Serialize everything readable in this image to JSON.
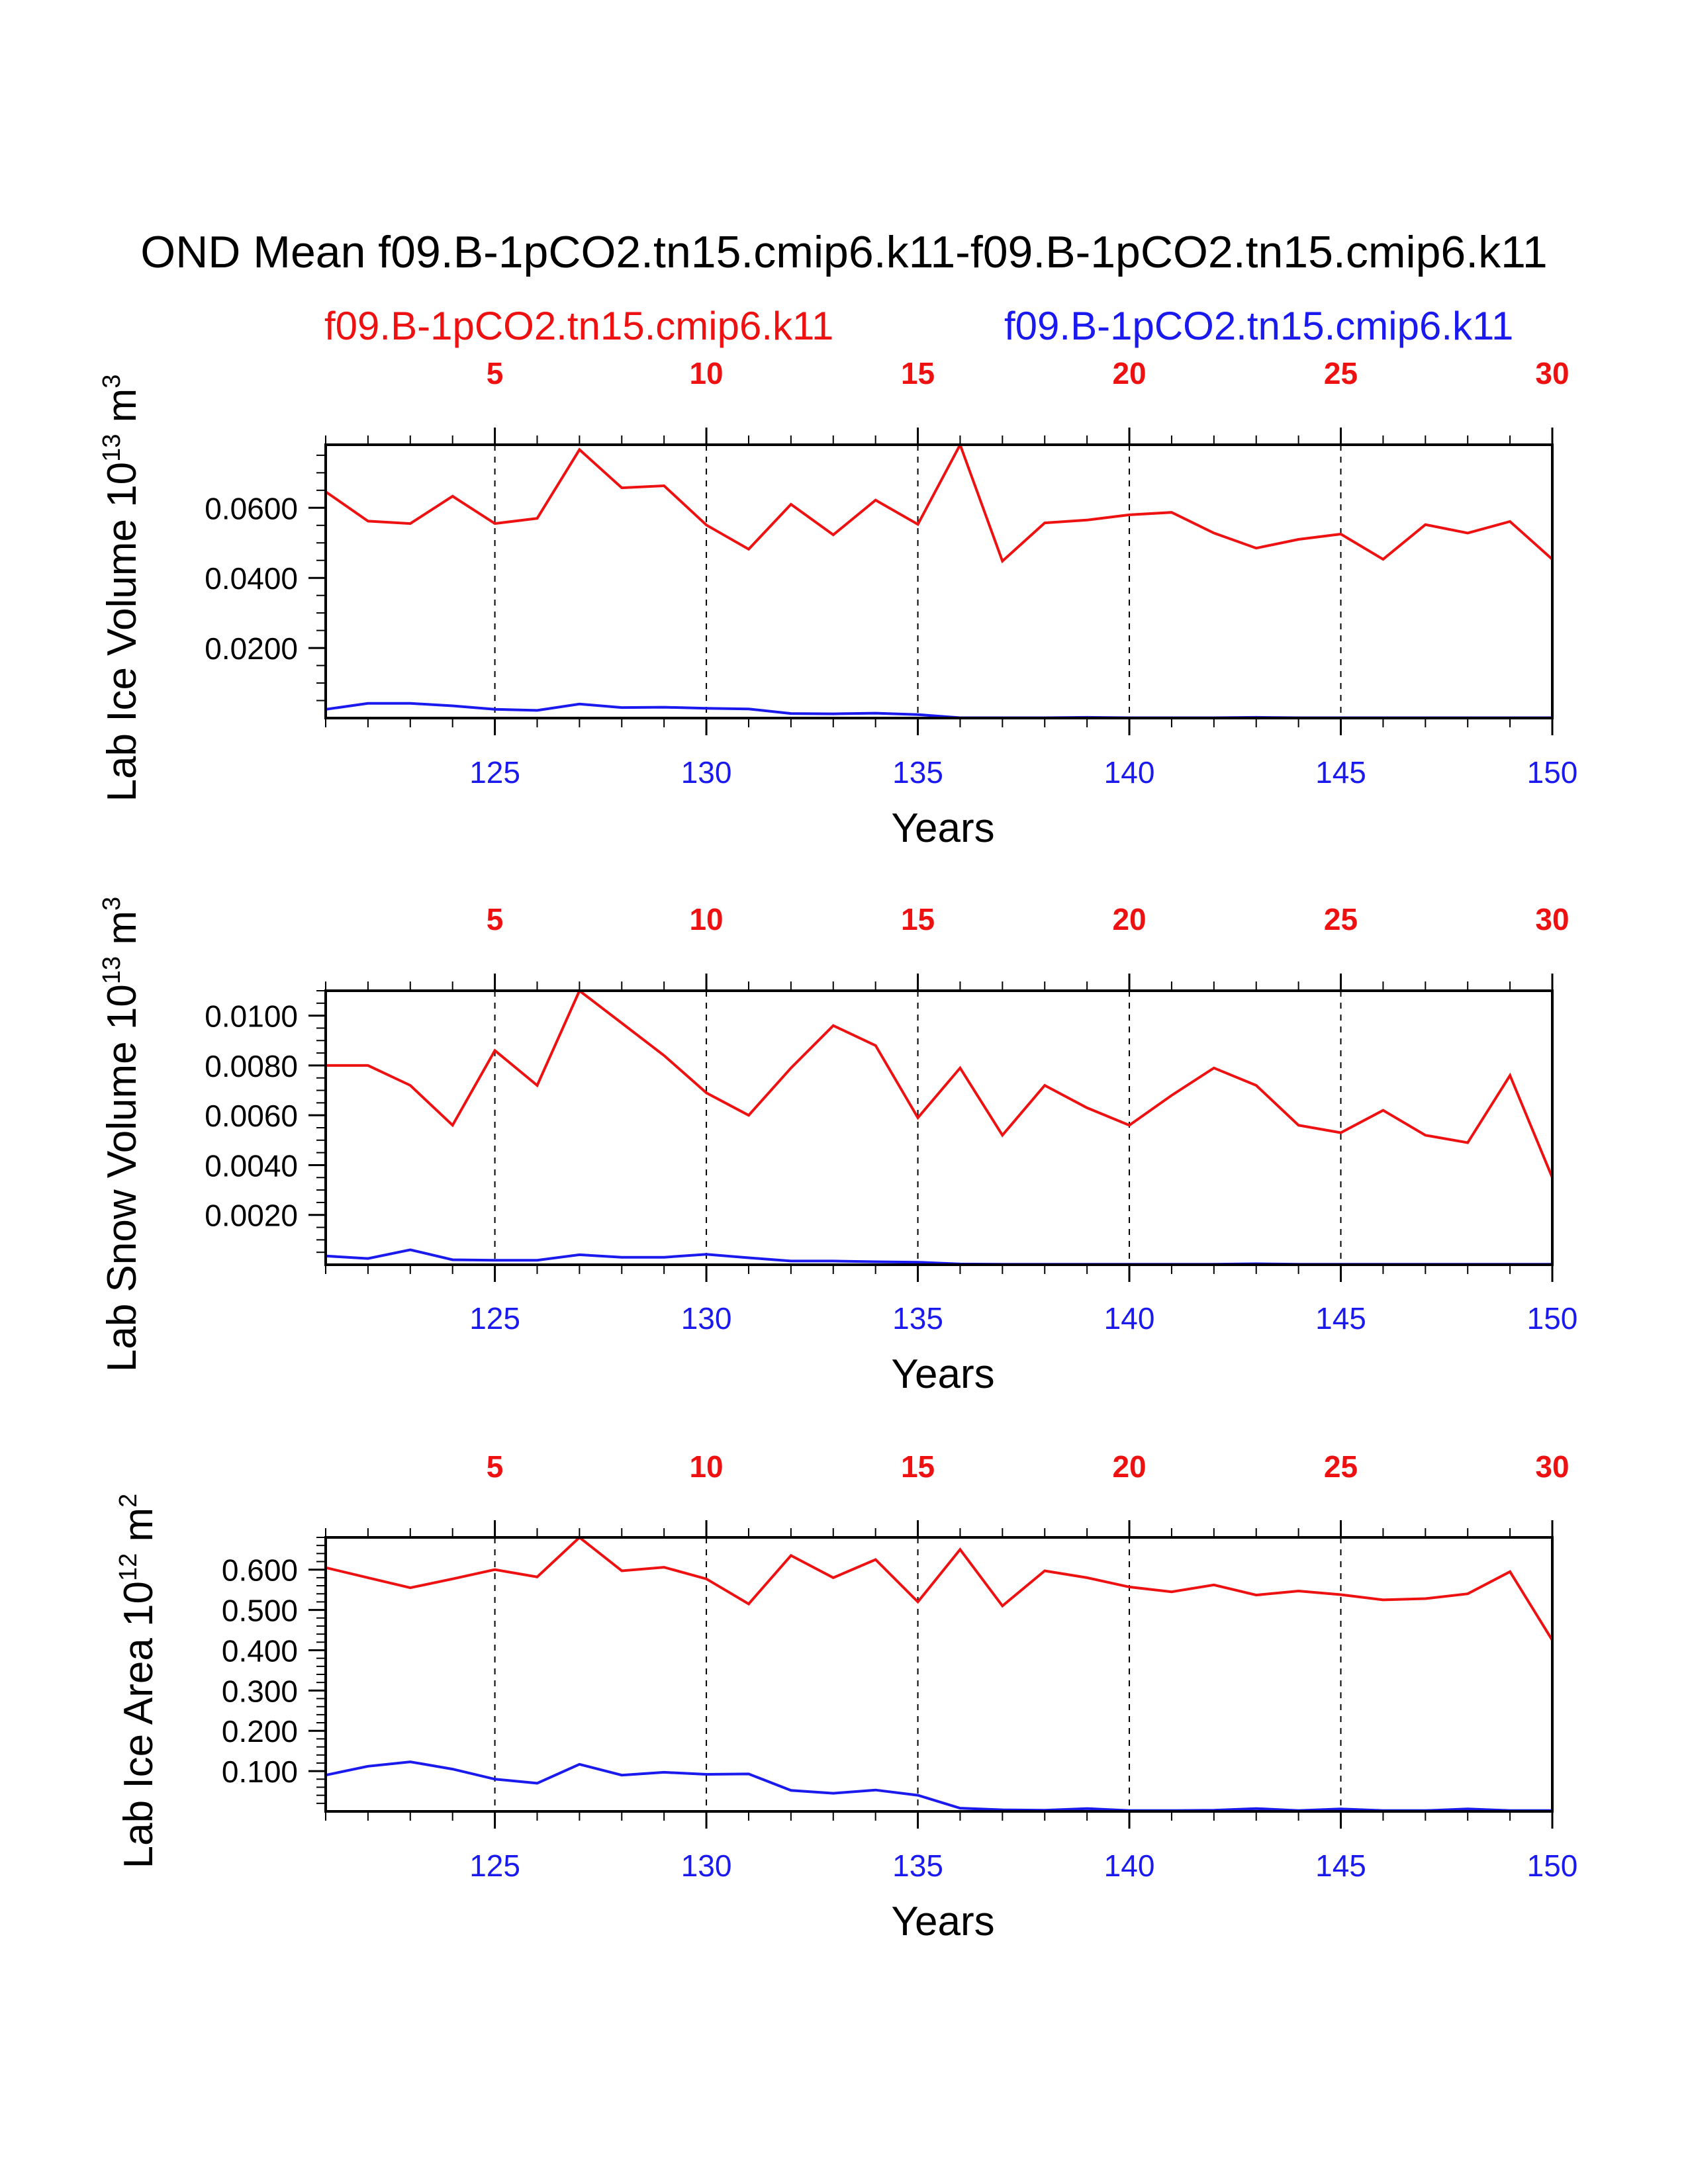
{
  "title": "OND Mean f09.B-1pCO2.tn15.cmip6.k11-f09.B-1pCO2.tn15.cmip6.k11",
  "legend": {
    "series_a": "f09.B-1pCO2.tn15.cmip6.k11",
    "series_b": "f09.B-1pCO2.tn15.cmip6.k11"
  },
  "colors": {
    "series_a": "#ee1111",
    "series_b": "#1a1aee",
    "axis": "#000000"
  },
  "chart_data": [
    {
      "type": "line",
      "ylabel": "Lab Ice Volume 10",
      "ylabel_exp": "13",
      "ylabel_unit": " m",
      "ylabel_unit_exp": "3",
      "xlabel": "Years",
      "ylim": [
        0,
        0.078
      ],
      "yticks": [
        0.02,
        0.04,
        0.06
      ],
      "yticklabels": [
        "0.0200",
        "0.0400",
        "0.0600"
      ],
      "yminor": 0.005,
      "xlim": [
        121,
        150
      ],
      "top_axis": {
        "ticks": [
          5,
          10,
          15,
          20,
          25,
          30
        ]
      },
      "bottom_axis": {
        "ticks": [
          125,
          130,
          135,
          140,
          145,
          150
        ]
      },
      "x": [
        121,
        122,
        123,
        124,
        125,
        126,
        127,
        128,
        129,
        130,
        131,
        132,
        133,
        134,
        135,
        136,
        137,
        138,
        139,
        140,
        141,
        142,
        143,
        144,
        145,
        146,
        147,
        148,
        149,
        150
      ],
      "series": [
        {
          "name": "f09.B-1pCO2.tn15.cmip6.k11",
          "values": [
            0.0646,
            0.0562,
            0.0555,
            0.0633,
            0.0555,
            0.057,
            0.0766,
            0.0657,
            0.0663,
            0.0551,
            0.0482,
            0.061,
            0.0523,
            0.0622,
            0.0553,
            0.078,
            0.0448,
            0.0557,
            0.0565,
            0.058,
            0.0587,
            0.0528,
            0.0485,
            0.051,
            0.0525,
            0.0453,
            0.0552,
            0.0528,
            0.0561,
            0.0453
          ]
        },
        {
          "name": "f09.B-1pCO2.tn15.cmip6.k11",
          "values": [
            0.0025,
            0.0042,
            0.0042,
            0.0035,
            0.0025,
            0.0022,
            0.004,
            0.003,
            0.0031,
            0.0028,
            0.0026,
            0.0013,
            0.0012,
            0.0014,
            0.001,
            0.0001,
            0.0001,
            0.0001,
            0.0002,
            0.0001,
            0.0001,
            0.0001,
            0.0002,
            0.0001,
            0.0001,
            0.0001,
            0.0001,
            0.0001,
            0.0001,
            0.0001
          ]
        }
      ]
    },
    {
      "type": "line",
      "ylabel": "Lab Snow Volume 10",
      "ylabel_exp": "13",
      "ylabel_unit": " m",
      "ylabel_unit_exp": "3",
      "xlabel": "Years",
      "ylim": [
        0,
        0.011
      ],
      "yticks": [
        0.002,
        0.004,
        0.006,
        0.008,
        0.01
      ],
      "yticklabels": [
        "0.0020",
        "0.0040",
        "0.0060",
        "0.0080",
        "0.0100"
      ],
      "yminor": 0.0005,
      "xlim": [
        121,
        150
      ],
      "top_axis": {
        "ticks": [
          5,
          10,
          15,
          20,
          25,
          30
        ]
      },
      "bottom_axis": {
        "ticks": [
          125,
          130,
          135,
          140,
          145,
          150
        ]
      },
      "x": [
        121,
        122,
        123,
        124,
        125,
        126,
        127,
        128,
        129,
        130,
        131,
        132,
        133,
        134,
        135,
        136,
        137,
        138,
        139,
        140,
        141,
        142,
        143,
        144,
        145,
        146,
        147,
        148,
        149,
        150
      ],
      "series": [
        {
          "name": "f09.B-1pCO2.tn15.cmip6.k11",
          "values": [
            0.008,
            0.008,
            0.0072,
            0.0056,
            0.0086,
            0.0072,
            0.011,
            0.0097,
            0.0084,
            0.0069,
            0.006,
            0.0079,
            0.0096,
            0.0088,
            0.0059,
            0.0079,
            0.0052,
            0.0072,
            0.0063,
            0.0056,
            0.0068,
            0.0079,
            0.0072,
            0.0056,
            0.0053,
            0.0062,
            0.0052,
            0.0049,
            0.0076,
            0.0035
          ]
        },
        {
          "name": "f09.B-1pCO2.tn15.cmip6.k11",
          "values": [
            0.00035,
            0.00025,
            0.0006,
            0.0002,
            0.00018,
            0.00018,
            0.0004,
            0.0003,
            0.0003,
            0.00042,
            0.00028,
            0.00015,
            0.00015,
            0.00012,
            0.0001,
            3e-05,
            2e-05,
            2e-05,
            2e-05,
            2e-05,
            2e-05,
            2e-05,
            4e-05,
            2e-05,
            2e-05,
            2e-05,
            2e-05,
            2e-05,
            2e-05,
            2e-05
          ]
        }
      ]
    },
    {
      "type": "line",
      "ylabel": "Lab Ice Area 10",
      "ylabel_exp": "12",
      "ylabel_unit": " m",
      "ylabel_unit_exp": "2",
      "xlabel": "Years",
      "ylim": [
        0,
        0.68
      ],
      "yticks": [
        0.1,
        0.2,
        0.3,
        0.4,
        0.5,
        0.6
      ],
      "yticklabels": [
        "0.100",
        "0.200",
        "0.300",
        "0.400",
        "0.500",
        "0.600"
      ],
      "yminor": 0.02,
      "xlim": [
        121,
        150
      ],
      "top_axis": {
        "ticks": [
          5,
          10,
          15,
          20,
          25,
          30
        ]
      },
      "bottom_axis": {
        "ticks": [
          125,
          130,
          135,
          140,
          145,
          150
        ]
      },
      "x": [
        121,
        122,
        123,
        124,
        125,
        126,
        127,
        128,
        129,
        130,
        131,
        132,
        133,
        134,
        135,
        136,
        137,
        138,
        139,
        140,
        141,
        142,
        143,
        144,
        145,
        146,
        147,
        148,
        149,
        150
      ],
      "series": [
        {
          "name": "f09.B-1pCO2.tn15.cmip6.k11",
          "values": [
            0.605,
            0.58,
            0.555,
            0.577,
            0.6,
            0.582,
            0.68,
            0.597,
            0.606,
            0.577,
            0.515,
            0.635,
            0.58,
            0.625,
            0.52,
            0.65,
            0.51,
            0.597,
            0.58,
            0.557,
            0.545,
            0.562,
            0.537,
            0.547,
            0.538,
            0.525,
            0.528,
            0.54,
            0.595,
            0.425
          ]
        },
        {
          "name": "f09.B-1pCO2.tn15.cmip6.k11",
          "values": [
            0.09,
            0.112,
            0.123,
            0.105,
            0.08,
            0.07,
            0.117,
            0.09,
            0.097,
            0.092,
            0.093,
            0.052,
            0.045,
            0.053,
            0.04,
            0.008,
            0.004,
            0.003,
            0.007,
            0.002,
            0.002,
            0.003,
            0.007,
            0.002,
            0.006,
            0.002,
            0.002,
            0.006,
            0.002,
            0.002
          ]
        }
      ]
    }
  ]
}
